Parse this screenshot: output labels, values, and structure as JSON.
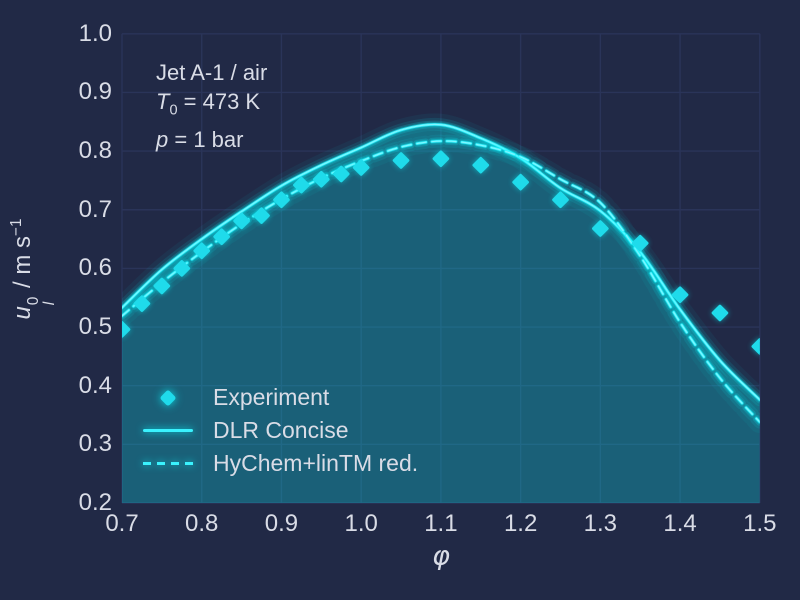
{
  "figure": {
    "background": "#212946",
    "grid_color": "#2a3459",
    "text_color": "#d9dce6",
    "accent": "#08f7fe",
    "marker_color": "#1fdbeb",
    "fill_color": "rgba(8,247,254,0.27)"
  },
  "annotation": {
    "fuel": "Jet A-1 / air",
    "t_var": "T",
    "t_sub": "0",
    "t_rest": " = 473 K",
    "p_var": "p",
    "p_rest": " = 1 bar"
  },
  "axes": {
    "x": {
      "label": "φ"
    },
    "y": {
      "label_var": "u",
      "label_sup": "0",
      "label_sub": "l",
      "label_mid": " / m s",
      "label_exp": "−1"
    }
  },
  "chart_data": {
    "type": "line+scatter",
    "title": "",
    "xlabel": "φ",
    "ylabel": "u_l^0 / m s^-1",
    "xlim": [
      0.7,
      1.5
    ],
    "ylim": [
      0.2,
      1.0
    ],
    "grid": true,
    "legend_position": "lower left",
    "x_ticks": [
      "0.7",
      "0.8",
      "0.9",
      "1.0",
      "1.1",
      "1.2",
      "1.3",
      "1.4",
      "1.5"
    ],
    "y_ticks": [
      "0.2",
      "0.3",
      "0.4",
      "0.5",
      "0.6",
      "0.7",
      "0.8",
      "0.9",
      "1.0"
    ],
    "conditions": [
      "Jet A-1 / air",
      "T0 = 473 K",
      "p = 1 bar"
    ],
    "series": [
      {
        "name": "Experiment",
        "type": "scatter",
        "marker": "diamond",
        "x": [
          0.7,
          0.725,
          0.75,
          0.775,
          0.8,
          0.825,
          0.85,
          0.875,
          0.9,
          0.925,
          0.95,
          0.975,
          1.0,
          1.05,
          1.1,
          1.15,
          1.2,
          1.25,
          1.3,
          1.35,
          1.4,
          1.45,
          1.5
        ],
        "y": [
          0.496,
          0.54,
          0.57,
          0.6,
          0.63,
          0.654,
          0.681,
          0.69,
          0.717,
          0.742,
          0.752,
          0.761,
          0.772,
          0.784,
          0.787,
          0.776,
          0.747,
          0.717,
          0.668,
          0.643,
          0.555,
          0.524,
          0.467
        ]
      },
      {
        "name": "DLR Concise",
        "type": "line",
        "style": "solid",
        "fill_under": true,
        "x": [
          0.7,
          0.75,
          0.8,
          0.85,
          0.9,
          0.95,
          1.0,
          1.05,
          1.1,
          1.15,
          1.2,
          1.25,
          1.3,
          1.35,
          1.4,
          1.45,
          1.5
        ],
        "y": [
          0.533,
          0.598,
          0.65,
          0.697,
          0.741,
          0.776,
          0.806,
          0.836,
          0.845,
          0.822,
          0.788,
          0.737,
          0.698,
          0.628,
          0.53,
          0.443,
          0.376
        ]
      },
      {
        "name": "HyChem+linTM red.",
        "type": "line",
        "style": "dashed",
        "fill_under": false,
        "x": [
          0.7,
          0.75,
          0.8,
          0.85,
          0.9,
          0.95,
          1.0,
          1.05,
          1.1,
          1.15,
          1.2,
          1.25,
          1.3,
          1.35,
          1.4,
          1.45,
          1.5
        ],
        "y": [
          0.519,
          0.576,
          0.628,
          0.676,
          0.718,
          0.754,
          0.783,
          0.807,
          0.817,
          0.81,
          0.79,
          0.752,
          0.712,
          0.621,
          0.508,
          0.413,
          0.338
        ]
      }
    ]
  }
}
